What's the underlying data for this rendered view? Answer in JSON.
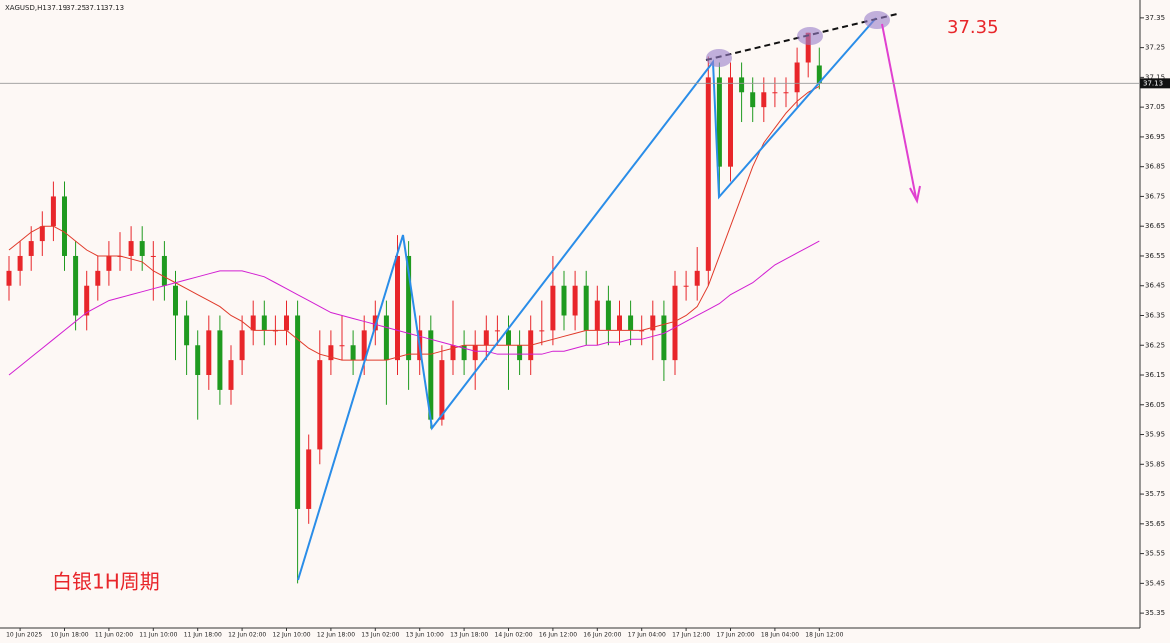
{
  "chart_data": {
    "type": "candlestick",
    "symbol": "XAGUSD,H1",
    "up_color": "#e8262a",
    "down_color": "#1f9a1f",
    "categories": [
      null,
      "10 Jun 2025",
      null,
      null,
      null,
      "10 Jun 18:00",
      null,
      null,
      null,
      "11 Jun 02:00",
      null,
      null,
      null,
      "11 Jun 10:00",
      null,
      null,
      null,
      "11 Jun 18:00",
      null,
      null,
      null,
      "12 Jun 02:00",
      null,
      null,
      null,
      "12 Jun 10:00",
      null,
      null,
      null,
      "12 Jun 18:00",
      null,
      null,
      null,
      "13 Jun 02:00",
      null,
      null,
      null,
      "13 Jun 10:00",
      null,
      null,
      null,
      "13 Jun 18:00",
      null,
      null,
      null,
      "14 Jun 02:00",
      null,
      null,
      null,
      "16 Jun 12:00",
      null,
      null,
      null,
      "16 Jun 20:00",
      null,
      null,
      null,
      "17 Jun 04:00",
      null,
      null,
      null,
      "17 Jun 12:00",
      null,
      null,
      null,
      "17 Jun 20:00",
      null,
      null,
      null,
      "18 Jun 04:00",
      null,
      null,
      null,
      "18 Jun 12:00"
    ],
    "open": [
      36.45,
      36.5,
      36.55,
      36.6,
      36.65,
      36.75,
      36.55,
      36.35,
      36.45,
      36.5,
      36.55,
      36.55,
      36.6,
      36.55,
      36.55,
      36.45,
      36.35,
      36.25,
      36.15,
      36.3,
      36.1,
      36.2,
      36.3,
      36.35,
      36.3,
      36.3,
      36.35,
      35.7,
      35.9,
      36.2,
      36.25,
      36.25,
      36.2,
      36.3,
      36.35,
      36.2,
      36.55,
      36.2,
      36.3,
      36.0,
      36.2,
      36.25,
      36.2,
      36.25,
      36.3,
      36.3,
      36.25,
      36.2,
      36.3,
      36.3,
      36.45,
      36.35,
      36.45,
      36.3,
      36.4,
      36.3,
      36.35,
      36.3,
      36.3,
      36.35,
      36.2,
      36.45,
      36.45,
      36.5,
      37.15,
      36.85,
      37.15,
      37.1,
      37.05,
      37.1,
      37.1,
      37.1,
      37.2,
      37.19
    ],
    "high": [
      36.55,
      36.6,
      36.65,
      36.7,
      36.8,
      36.8,
      36.6,
      36.5,
      36.55,
      36.6,
      36.63,
      36.65,
      36.65,
      36.6,
      36.6,
      36.5,
      36.4,
      36.3,
      36.35,
      36.35,
      36.25,
      36.35,
      36.4,
      36.4,
      36.35,
      36.4,
      36.4,
      35.95,
      36.3,
      36.3,
      36.35,
      36.3,
      36.35,
      36.4,
      36.4,
      36.62,
      36.6,
      36.35,
      36.35,
      36.25,
      36.4,
      36.3,
      36.3,
      36.35,
      36.35,
      36.35,
      36.3,
      36.35,
      36.4,
      36.55,
      36.5,
      36.5,
      36.5,
      36.45,
      36.45,
      36.4,
      36.4,
      36.35,
      36.4,
      36.4,
      36.5,
      36.5,
      36.58,
      37.22,
      37.2,
      37.2,
      37.2,
      37.15,
      37.15,
      37.15,
      37.15,
      37.25,
      37.3,
      37.25
    ],
    "low": [
      36.4,
      36.45,
      36.5,
      36.55,
      36.6,
      36.5,
      36.3,
      36.3,
      36.4,
      36.45,
      36.5,
      36.5,
      36.5,
      36.4,
      36.4,
      36.2,
      36.15,
      36.0,
      36.1,
      36.05,
      36.05,
      36.15,
      36.25,
      36.25,
      36.25,
      36.25,
      35.45,
      35.65,
      35.85,
      36.15,
      36.2,
      36.15,
      36.15,
      36.25,
      36.05,
      36.15,
      36.1,
      36.15,
      35.97,
      35.98,
      36.15,
      36.15,
      36.1,
      36.2,
      36.25,
      36.1,
      36.15,
      36.15,
      36.25,
      36.25,
      36.3,
      36.3,
      36.25,
      36.25,
      36.25,
      36.25,
      36.25,
      36.25,
      36.2,
      36.13,
      36.15,
      36.4,
      36.4,
      36.45,
      36.75,
      36.8,
      37.0,
      37.0,
      37.0,
      37.05,
      37.05,
      37.05,
      37.15,
      37.11
    ],
    "close": [
      36.5,
      36.55,
      36.6,
      36.65,
      36.75,
      36.55,
      36.35,
      36.45,
      36.5,
      36.55,
      36.55,
      36.6,
      36.55,
      36.55,
      36.45,
      36.35,
      36.25,
      36.15,
      36.3,
      36.1,
      36.2,
      36.3,
      36.35,
      36.3,
      36.3,
      36.35,
      35.7,
      35.9,
      36.2,
      36.25,
      36.25,
      36.2,
      36.3,
      36.35,
      36.2,
      36.55,
      36.2,
      36.3,
      36.0,
      36.2,
      36.25,
      36.2,
      36.25,
      36.3,
      36.3,
      36.25,
      36.2,
      36.3,
      36.3,
      36.45,
      36.35,
      36.45,
      36.3,
      36.4,
      36.3,
      36.35,
      36.3,
      36.3,
      36.35,
      36.2,
      36.45,
      36.45,
      36.5,
      37.15,
      36.85,
      37.15,
      37.1,
      37.05,
      37.1,
      37.1,
      37.1,
      37.2,
      37.3,
      37.13
    ],
    "series": [
      {
        "color": "#e03a2a",
        "values": [
          36.57,
          36.6,
          36.63,
          36.65,
          36.65,
          36.63,
          36.6,
          36.57,
          36.55,
          36.55,
          36.55,
          36.54,
          36.53,
          36.5,
          36.48,
          36.46,
          36.44,
          36.42,
          36.4,
          36.38,
          36.35,
          36.33,
          36.3,
          36.3,
          36.3,
          36.3,
          36.27,
          36.24,
          36.22,
          36.21,
          36.2,
          36.2,
          36.2,
          36.2,
          36.2,
          36.21,
          36.22,
          36.22,
          36.22,
          36.23,
          36.24,
          36.25,
          36.25,
          36.25,
          36.25,
          36.25,
          36.25,
          36.25,
          36.26,
          36.27,
          36.28,
          36.29,
          36.3,
          36.3,
          36.3,
          36.3,
          36.3,
          36.3,
          36.31,
          36.32,
          36.33,
          36.35,
          36.38,
          36.45,
          36.55,
          36.65,
          36.75,
          36.85,
          36.93,
          36.98,
          37.03,
          37.07,
          37.1,
          37.12
        ]
      },
      {
        "color": "#d21fd2",
        "values": [
          36.15,
          36.18,
          36.21,
          36.24,
          36.27,
          36.3,
          36.33,
          36.36,
          36.38,
          36.4,
          36.41,
          36.42,
          36.43,
          36.44,
          36.45,
          36.46,
          36.47,
          36.48,
          36.49,
          36.5,
          36.5,
          36.5,
          36.49,
          36.48,
          36.46,
          36.44,
          36.42,
          36.4,
          36.38,
          36.36,
          36.35,
          36.34,
          36.33,
          36.32,
          36.31,
          36.3,
          36.29,
          36.28,
          36.27,
          36.26,
          36.25,
          36.24,
          36.23,
          36.23,
          36.22,
          36.22,
          36.22,
          36.22,
          36.22,
          36.23,
          36.23,
          36.24,
          36.25,
          36.25,
          36.26,
          36.26,
          36.27,
          36.27,
          36.28,
          36.29,
          36.31,
          36.33,
          36.35,
          36.37,
          36.39,
          36.42,
          36.44,
          36.46,
          36.49,
          36.52,
          36.54,
          36.56,
          36.58,
          36.6
        ]
      }
    ],
    "ylim": [
      35.3,
      37.41
    ],
    "yticks": [
      35.35,
      35.45,
      35.55,
      35.65,
      35.75,
      35.85,
      35.95,
      36.05,
      36.15,
      36.25,
      36.35,
      36.45,
      36.55,
      36.65,
      36.75,
      36.85,
      36.95,
      37.05,
      37.15,
      37.25,
      37.35
    ],
    "grid": false,
    "annotations": [
      "37.35",
      "白银1H周期"
    ]
  }
}
